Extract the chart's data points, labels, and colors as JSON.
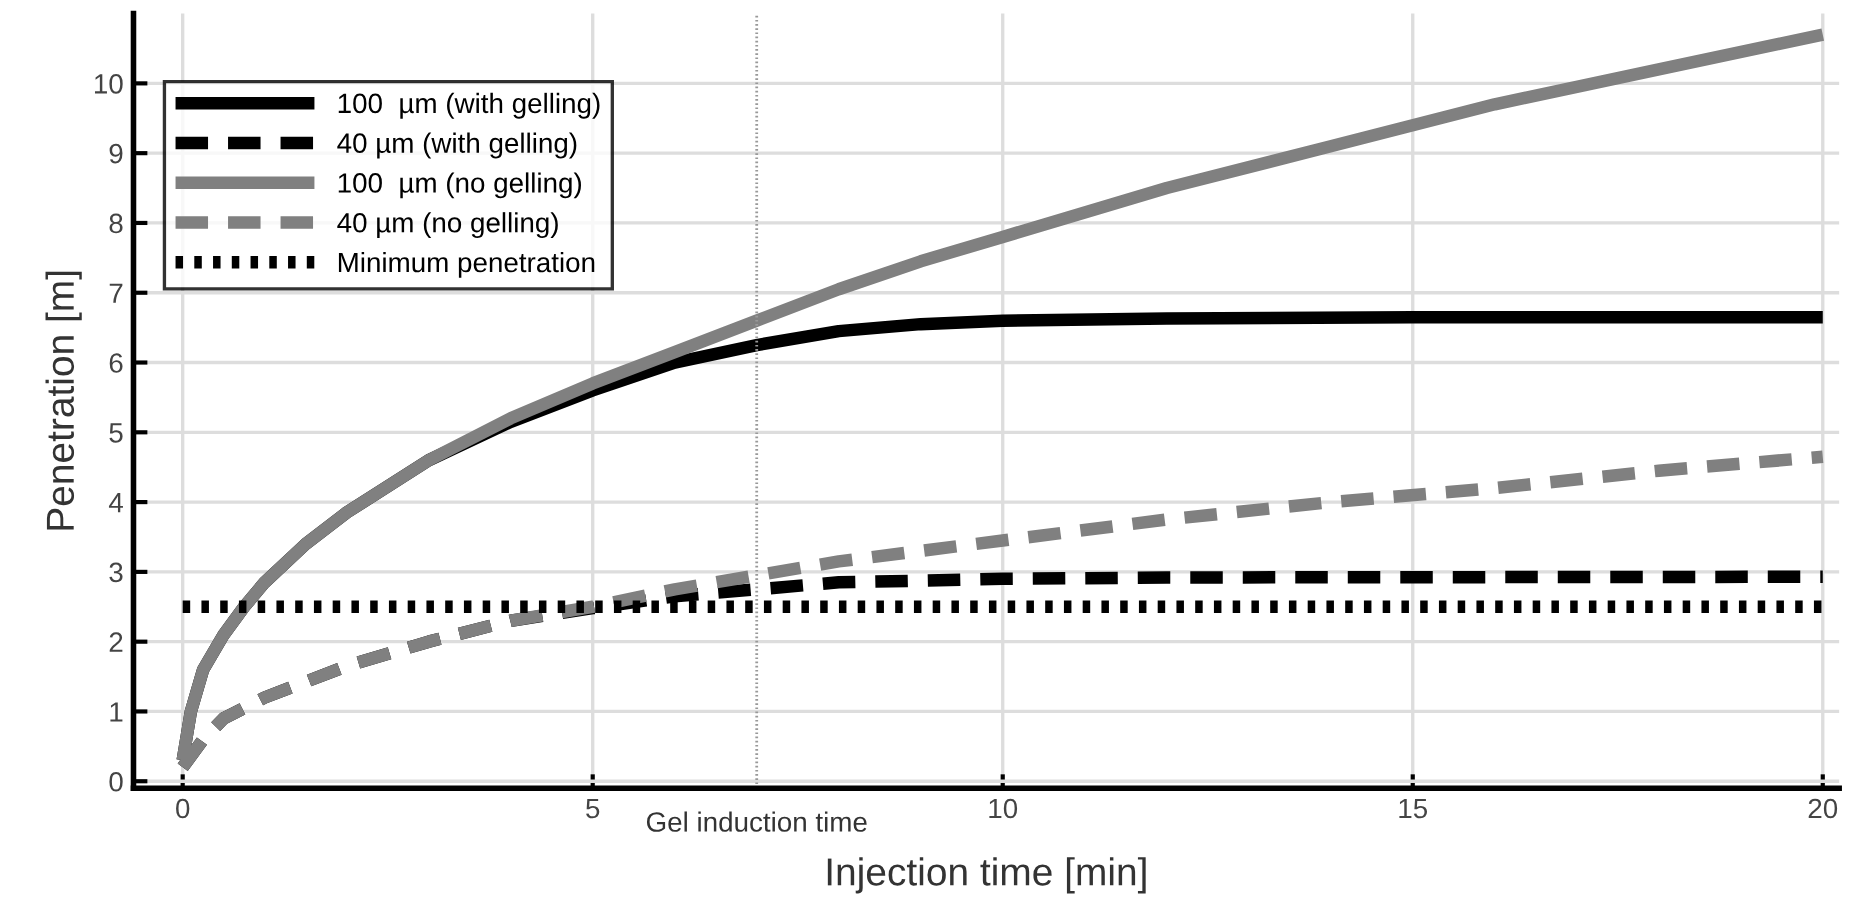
{
  "chart_data": {
    "type": "line",
    "xlabel": "Injection time [min]",
    "ylabel": "Penetration [m]",
    "xlim": [
      -0.6,
      20.2
    ],
    "ylim": [
      -0.1,
      11
    ],
    "xticks": [
      0,
      5,
      10,
      15,
      20
    ],
    "yticks": [
      0,
      1,
      2,
      3,
      4,
      5,
      6,
      7,
      8,
      9,
      10
    ],
    "grid": true,
    "legend": "top left",
    "series": [
      {
        "name": "100  µm (with gelling)",
        "color": "#000000",
        "line_style": "solid",
        "x": [
          0,
          0.1,
          0.25,
          0.5,
          0.75,
          1,
          1.5,
          2,
          3,
          4,
          5,
          6,
          7,
          8,
          9,
          10,
          12,
          15,
          20
        ],
        "values": [
          0.3,
          1.0,
          1.6,
          2.1,
          2.5,
          2.85,
          3.4,
          3.85,
          4.6,
          5.15,
          5.6,
          6.0,
          6.25,
          6.45,
          6.55,
          6.6,
          6.63,
          6.65,
          6.65
        ]
      },
      {
        "name": "40 µm (with gelling)",
        "color": "#000000",
        "line_style": "dashed",
        "x": [
          0,
          0.25,
          0.5,
          1,
          2,
          3,
          4,
          5,
          6,
          7,
          8,
          10,
          12,
          20
        ],
        "values": [
          0.2,
          0.6,
          0.9,
          1.2,
          1.65,
          2.0,
          2.3,
          2.48,
          2.65,
          2.75,
          2.85,
          2.9,
          2.92,
          2.93
        ]
      },
      {
        "name": "100  µm (no gelling)",
        "color": "#808080",
        "line_style": "solid",
        "x": [
          0,
          0.1,
          0.25,
          0.5,
          0.75,
          1,
          1.5,
          2,
          3,
          4,
          5,
          6,
          7,
          8,
          9,
          10,
          12,
          14,
          16,
          18,
          20
        ],
        "values": [
          0.3,
          1.0,
          1.6,
          2.1,
          2.5,
          2.85,
          3.4,
          3.85,
          4.6,
          5.2,
          5.7,
          6.15,
          6.6,
          7.05,
          7.45,
          7.8,
          8.5,
          9.1,
          9.7,
          10.2,
          10.7
        ]
      },
      {
        "name": "40 µm (no gelling)",
        "color": "#808080",
        "line_style": "dashed",
        "x": [
          0,
          0.25,
          0.5,
          1,
          2,
          3,
          4,
          5,
          6,
          7,
          8,
          10,
          12,
          14,
          16,
          18,
          20
        ],
        "values": [
          0.2,
          0.6,
          0.9,
          1.2,
          1.65,
          2.0,
          2.3,
          2.5,
          2.75,
          2.95,
          3.15,
          3.45,
          3.75,
          4.0,
          4.2,
          4.45,
          4.65
        ]
      },
      {
        "name": "Minimum penetration",
        "color": "#000000",
        "line_style": "dotted",
        "x": [
          0,
          20
        ],
        "values": [
          2.5,
          2.5
        ]
      }
    ],
    "ref_lines": [
      {
        "axis": "x",
        "value": 7,
        "label": "Gel induction time",
        "color": "#999999",
        "line_style": "dotted"
      }
    ]
  }
}
